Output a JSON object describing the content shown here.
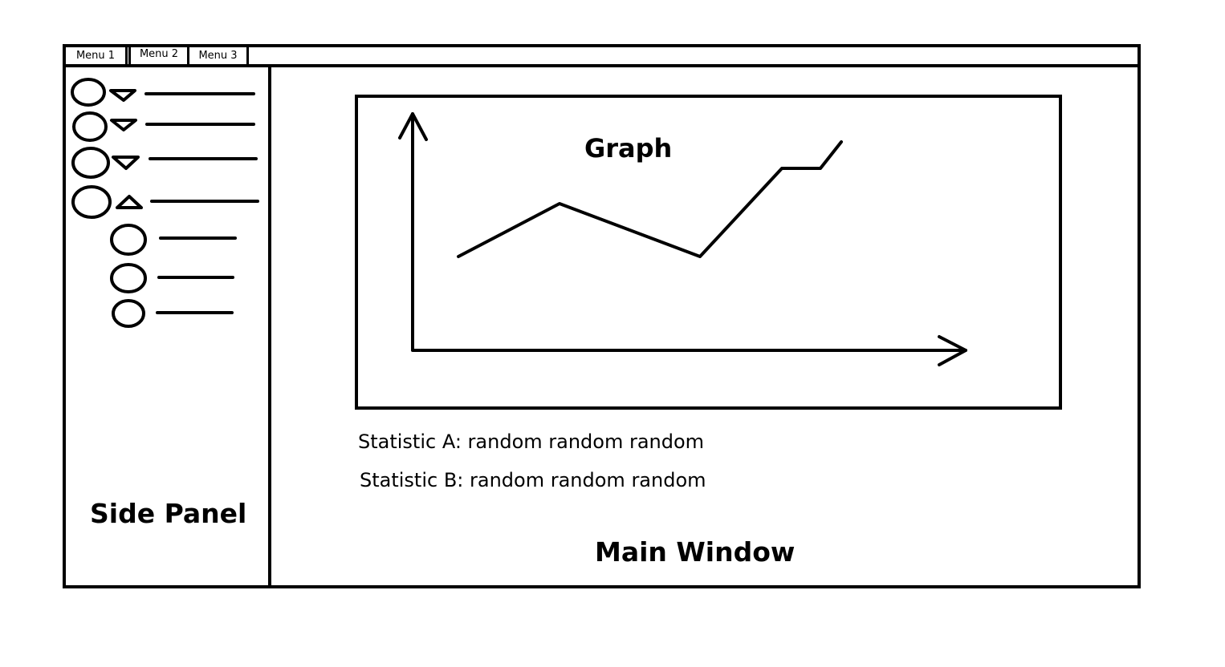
{
  "menu_bar": {
    "items": [
      {
        "label": "Menu 1"
      },
      {
        "label": "Menu 2"
      },
      {
        "label": "Menu 3"
      }
    ]
  },
  "side_panel": {
    "label": "Side Panel",
    "items": [
      {
        "level": 0,
        "expanded": false,
        "toggle_icon": "triangle-down-icon"
      },
      {
        "level": 0,
        "expanded": false,
        "toggle_icon": "triangle-down-icon"
      },
      {
        "level": 0,
        "expanded": false,
        "toggle_icon": "triangle-down-icon"
      },
      {
        "level": 0,
        "expanded": true,
        "toggle_icon": "triangle-up-icon"
      },
      {
        "level": 1
      },
      {
        "level": 1
      },
      {
        "level": 1
      }
    ]
  },
  "main_window": {
    "label": "Main Window",
    "graph": {
      "title": "Graph"
    },
    "statistics": [
      {
        "text": "Statistic A: random random random"
      },
      {
        "text": "Statistic B: random random random"
      }
    ]
  },
  "chart_data": {
    "type": "line",
    "title": "Graph",
    "xlabel": "",
    "ylabel": "",
    "x": [
      0,
      1,
      2,
      3,
      4,
      5
    ],
    "series": [
      {
        "values": [
          1.0,
          1.6,
          1.0,
          2.0,
          2.0,
          2.3
        ]
      }
    ],
    "ylim": [
      0,
      3
    ],
    "grid": false
  }
}
